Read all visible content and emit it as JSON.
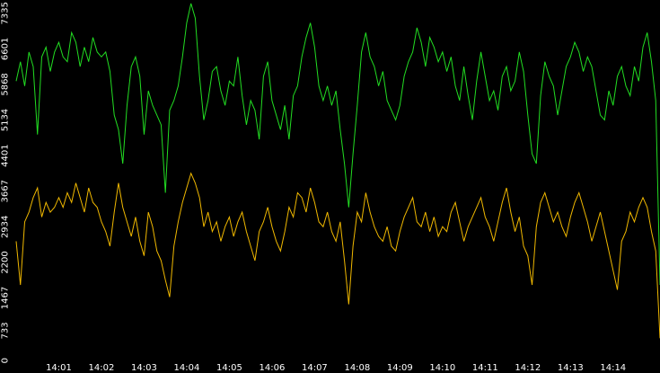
{
  "chart_data": {
    "type": "line",
    "categories": [
      null,
      null,
      null,
      null,
      null,
      null,
      null,
      null,
      null,
      null,
      "14:01",
      null,
      null,
      null,
      null,
      null,
      null,
      null,
      null,
      null,
      "14:02",
      null,
      null,
      null,
      null,
      null,
      null,
      null,
      null,
      null,
      "14:03",
      null,
      null,
      null,
      null,
      null,
      null,
      null,
      null,
      null,
      "14:04",
      null,
      null,
      null,
      null,
      null,
      null,
      null,
      null,
      null,
      "14:05",
      null,
      null,
      null,
      null,
      null,
      null,
      null,
      null,
      null,
      "14:06",
      null,
      null,
      null,
      null,
      null,
      null,
      null,
      null,
      null,
      "14:07",
      null,
      null,
      null,
      null,
      null,
      null,
      null,
      null,
      null,
      "14:08",
      null,
      null,
      null,
      null,
      null,
      null,
      null,
      null,
      null,
      "14:09",
      null,
      null,
      null,
      null,
      null,
      null,
      null,
      null,
      null,
      "14:10",
      null,
      null,
      null,
      null,
      null,
      null,
      null,
      null,
      null,
      "14:11",
      null,
      null,
      null,
      null,
      null,
      null,
      null,
      null,
      null,
      "14:12",
      null,
      null,
      null,
      null,
      null,
      null,
      null,
      null,
      null,
      "14:13",
      null,
      null,
      null,
      null,
      null,
      null,
      null,
      null,
      null,
      "14:14",
      null,
      null,
      null,
      null,
      null,
      null,
      null,
      null,
      null,
      null,
      null
    ],
    "series": [
      {
        "color": "#22dd22",
        "values": [
          5700,
          6100,
          5600,
          6300,
          6000,
          4600,
          6200,
          6400,
          5900,
          6300,
          6500,
          6200,
          6100,
          6700,
          6500,
          6000,
          6400,
          6100,
          6600,
          6300,
          6200,
          6300,
          5900,
          5000,
          4700,
          4000,
          5200,
          6000,
          6200,
          5800,
          4600,
          5500,
          5200,
          5000,
          4800,
          3400,
          5100,
          5300,
          5600,
          6200,
          6900,
          7300,
          7000,
          5800,
          4900,
          5300,
          5900,
          6000,
          5500,
          5200,
          5700,
          5600,
          6200,
          5400,
          4800,
          5300,
          5100,
          4500,
          5800,
          6100,
          5300,
          5000,
          4700,
          5200,
          4500,
          5400,
          5600,
          6200,
          6600,
          6900,
          6400,
          5600,
          5300,
          5600,
          5200,
          5500,
          4700,
          4000,
          3100,
          4200,
          5200,
          6300,
          6700,
          6200,
          6000,
          5600,
          5900,
          5300,
          5100,
          4900,
          5200,
          5800,
          6100,
          6300,
          6800,
          6500,
          6000,
          6600,
          6400,
          6100,
          6300,
          5900,
          6200,
          5600,
          5300,
          6000,
          5400,
          4900,
          5700,
          6300,
          5800,
          5300,
          5500,
          5100,
          5800,
          6000,
          5500,
          5700,
          6300,
          5900,
          5000,
          4200,
          4000,
          5400,
          6100,
          5800,
          5600,
          5000,
          5500,
          6000,
          6200,
          6500,
          6300,
          5900,
          6200,
          6000,
          5500,
          5000,
          4900,
          5500,
          5200,
          5800,
          6000,
          5600,
          5400,
          6000,
          5700,
          6400,
          6700,
          6100,
          5300,
          1500
        ]
      },
      {
        "color": "#f0b800",
        "values": [
          2400,
          1500,
          2800,
          3000,
          3300,
          3500,
          2900,
          3200,
          3000,
          3100,
          3300,
          3100,
          3400,
          3200,
          3600,
          3300,
          3000,
          3500,
          3200,
          3100,
          2800,
          2600,
          2300,
          3000,
          3600,
          3100,
          2800,
          2500,
          2900,
          2400,
          2100,
          3000,
          2700,
          2200,
          2000,
          1600,
          1250,
          2300,
          2800,
          3200,
          3500,
          3800,
          3600,
          3300,
          2700,
          3000,
          2600,
          2800,
          2400,
          2700,
          2900,
          2500,
          2800,
          3000,
          2600,
          2300,
          2000,
          2600,
          2800,
          3100,
          2700,
          2400,
          2200,
          2600,
          3100,
          2900,
          3400,
          3300,
          3000,
          3500,
          3200,
          2800,
          2700,
          3000,
          2600,
          2400,
          2800,
          2000,
          1100,
          2300,
          3000,
          2800,
          3400,
          3000,
          2700,
          2500,
          2400,
          2700,
          2300,
          2200,
          2600,
          2900,
          3100,
          3300,
          2800,
          2700,
          3000,
          2600,
          2900,
          2500,
          2700,
          2600,
          3000,
          3200,
          2800,
          2400,
          2700,
          2900,
          3100,
          3300,
          2900,
          2700,
          2400,
          2800,
          3200,
          3500,
          3000,
          2600,
          2900,
          2300,
          2100,
          1500,
          2700,
          3200,
          3400,
          3100,
          2800,
          3000,
          2700,
          2500,
          2900,
          3200,
          3400,
          3100,
          2800,
          2400,
          2700,
          3000,
          2600,
          2200,
          1800,
          1400,
          2400,
          2600,
          3000,
          2800,
          3100,
          3300,
          3100,
          2600,
          2200,
          400
        ]
      }
    ],
    "ylim": [
      0,
      7335
    ],
    "yticks": [
      0,
      733,
      1467,
      2200,
      2934,
      3667,
      4401,
      5134,
      5868,
      6601,
      7335
    ]
  }
}
